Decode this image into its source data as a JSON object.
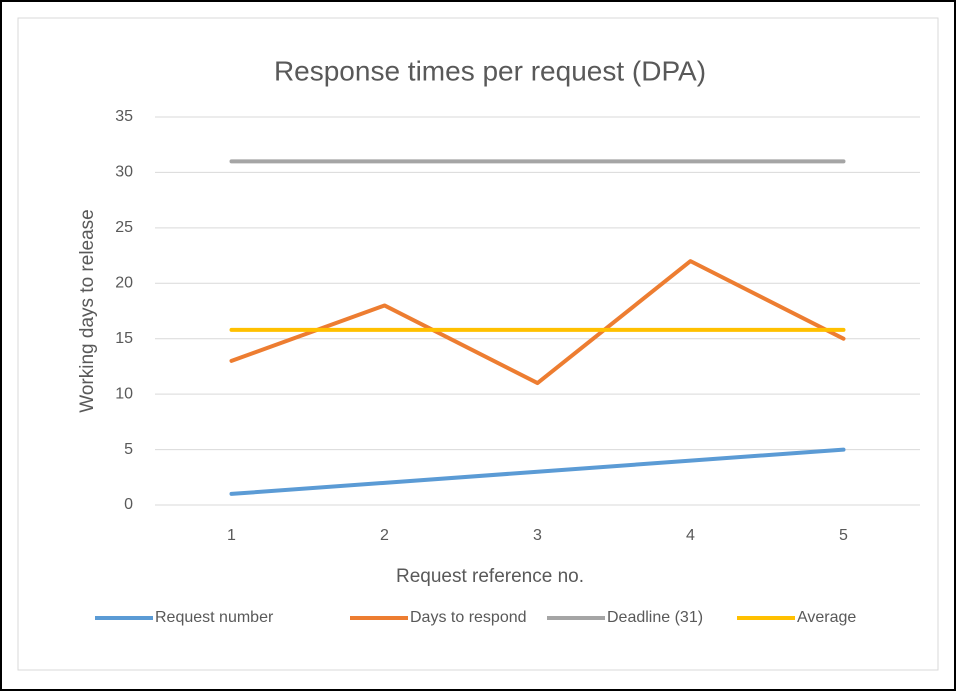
{
  "chart_data": {
    "type": "line",
    "title": "Response times per request (DPA)",
    "xlabel": "Request reference no.",
    "ylabel": "Working days to release",
    "categories": [
      "1",
      "2",
      "3",
      "4",
      "5"
    ],
    "series": [
      {
        "name": "Request number",
        "color": "#5b9bd5",
        "values": [
          1,
          2,
          3,
          4,
          5
        ]
      },
      {
        "name": "Days to respond",
        "color": "#ed7d31",
        "values": [
          13,
          18,
          11,
          22,
          15
        ]
      },
      {
        "name": "Deadline (31)",
        "color": "#a5a5a5",
        "values": [
          31,
          31,
          31,
          31,
          31
        ]
      },
      {
        "name": "Average",
        "color": "#ffc000",
        "values": [
          15.8,
          15.8,
          15.8,
          15.8,
          15.8
        ]
      }
    ],
    "ylim": [
      0,
      35
    ],
    "yticks": [
      0,
      5,
      10,
      15,
      20,
      25,
      30,
      35
    ],
    "grid": true,
    "legend": "bottom"
  }
}
